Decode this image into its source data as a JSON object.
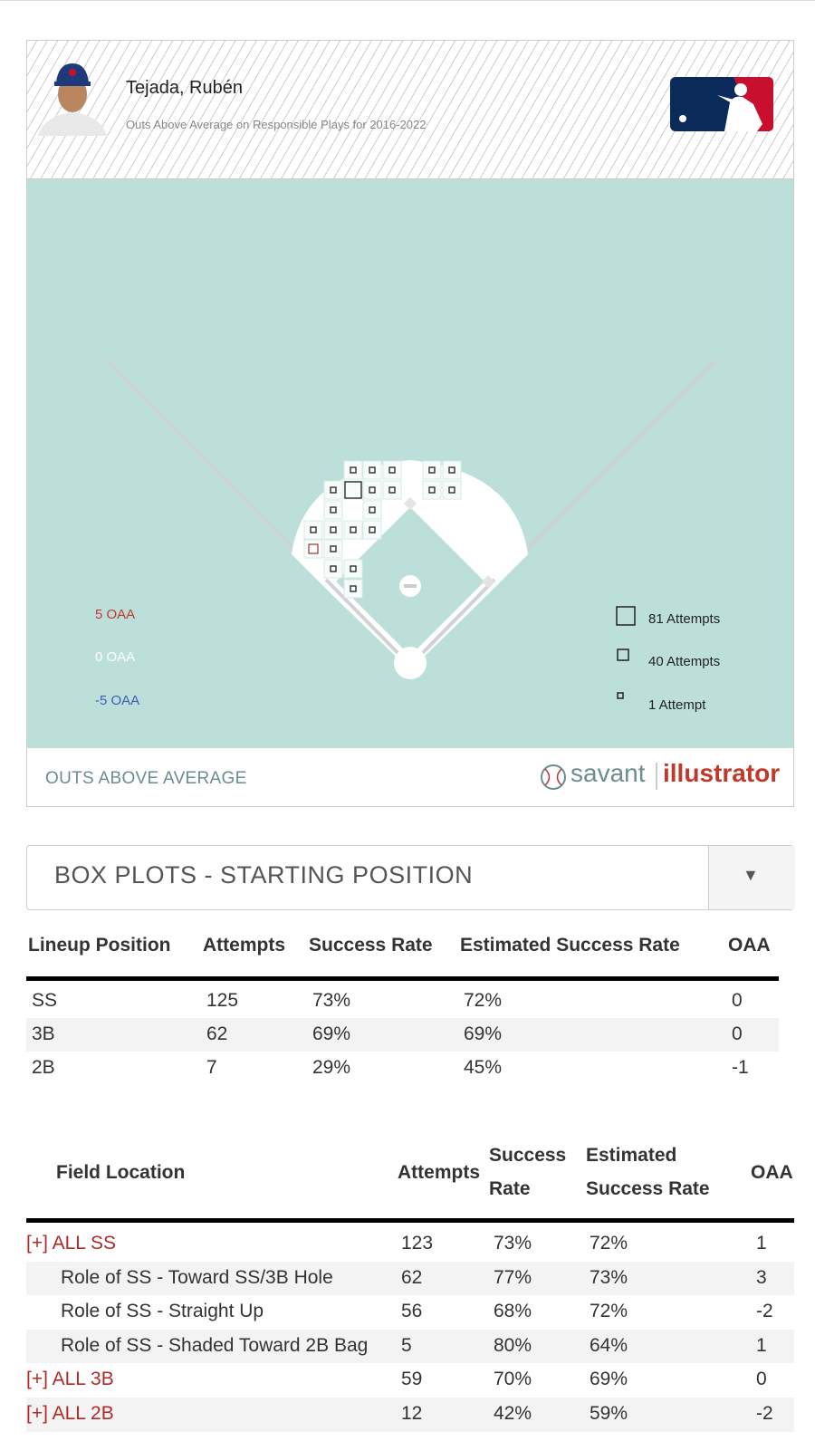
{
  "header": {
    "player": "Tejada, Rubén",
    "subtitle": "Outs Above Average on Responsible Plays for 2016-2022"
  },
  "field_legend": {
    "oaa": [
      "5 OAA",
      "0 OAA",
      "-5 OAA"
    ],
    "attempts": [
      "81 Attempts",
      "40 Attempts",
      "1 Attempt"
    ]
  },
  "footer": {
    "label": "OUTS ABOVE AVERAGE",
    "brand": "savant",
    "brand_accent": "illustrator"
  },
  "dropdown": {
    "selected": "BOX PLOTS - STARTING POSITION",
    "arrow": "▼"
  },
  "position_table": {
    "columns": [
      "Lineup Position",
      "Attempts",
      "Success Rate",
      "Estimated Success Rate",
      "OAA"
    ],
    "rows": [
      [
        "SS",
        "125",
        "73%",
        "72%",
        "0"
      ],
      [
        "3B",
        "62",
        "69%",
        "69%",
        "0"
      ],
      [
        "2B",
        "7",
        "29%",
        "45%",
        "-1"
      ]
    ]
  },
  "location_table": {
    "columns": [
      "Field Location",
      "Attempts",
      "Success Rate",
      "Estimated Success Rate",
      "OAA"
    ],
    "rows": [
      [
        "[+] ALL SS",
        "123",
        "73%",
        "72%",
        "1"
      ],
      [
        "Role of SS - Toward SS/3B Hole",
        "62",
        "77%",
        "73%",
        "3"
      ],
      [
        "Role of SS - Straight Up",
        "56",
        "68%",
        "72%",
        "-2"
      ],
      [
        "Role of SS - Shaded Toward 2B Bag",
        "5",
        "80%",
        "64%",
        "1"
      ],
      [
        "[+] ALL 3B",
        "59",
        "70%",
        "69%",
        "0"
      ],
      [
        "[+] ALL 2B",
        "12",
        "42%",
        "59%",
        "-2"
      ]
    ]
  }
}
